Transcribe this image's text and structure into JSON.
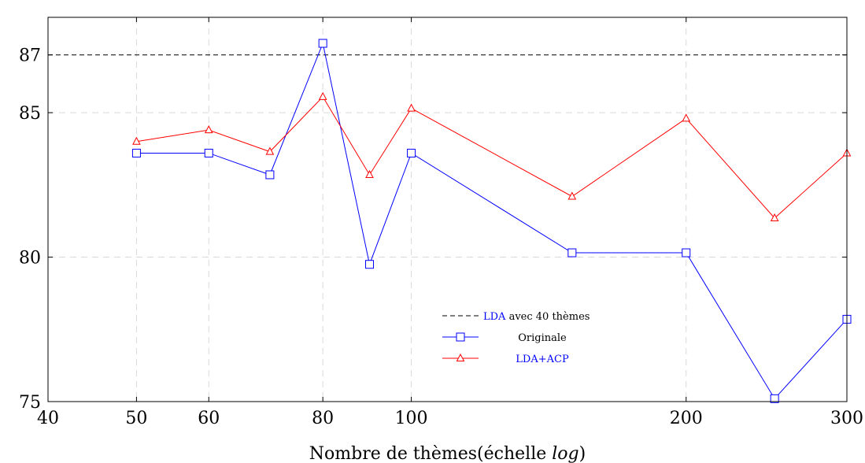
{
  "chart_data": {
    "type": "line",
    "xscale": "log",
    "xlim": [
      40,
      300
    ],
    "ylim": [
      75,
      88.3
    ],
    "xticks": [
      40,
      50,
      60,
      80,
      100,
      200,
      300
    ],
    "xtick_labels": [
      "40",
      "50",
      "60",
      "80",
      "100",
      "200",
      "300"
    ],
    "yticks": [
      75,
      80,
      85,
      87
    ],
    "ytick_labels": [
      "75",
      "80",
      "85",
      "87"
    ],
    "xlabel_prefix": "Nombre de thèmes(échelle ",
    "xlabel_italic": "log",
    "xlabel_suffix": ")",
    "ylabel": "",
    "grid": true,
    "legend_position": "lower-center",
    "baseline": {
      "name_prefix": "LDA",
      "name_suffix": " avec 40 thèmes",
      "value": 87,
      "color": "#000000",
      "style": "dashed"
    },
    "series": [
      {
        "name": "Originale",
        "color": "#0000ff",
        "marker": "square",
        "x": [
          50,
          60,
          70,
          80,
          90,
          100,
          150,
          200,
          250,
          300
        ],
        "y": [
          83.6,
          83.6,
          82.85,
          87.4,
          79.75,
          83.6,
          80.15,
          80.15,
          75.1,
          77.85
        ]
      },
      {
        "name": "LDA+ACP",
        "color": "#ff0000",
        "marker": "triangle",
        "x": [
          50,
          60,
          70,
          80,
          90,
          100,
          150,
          200,
          250,
          300
        ],
        "y": [
          84.0,
          84.4,
          83.65,
          85.55,
          82.85,
          85.15,
          82.1,
          84.8,
          81.35,
          83.6
        ]
      }
    ]
  }
}
